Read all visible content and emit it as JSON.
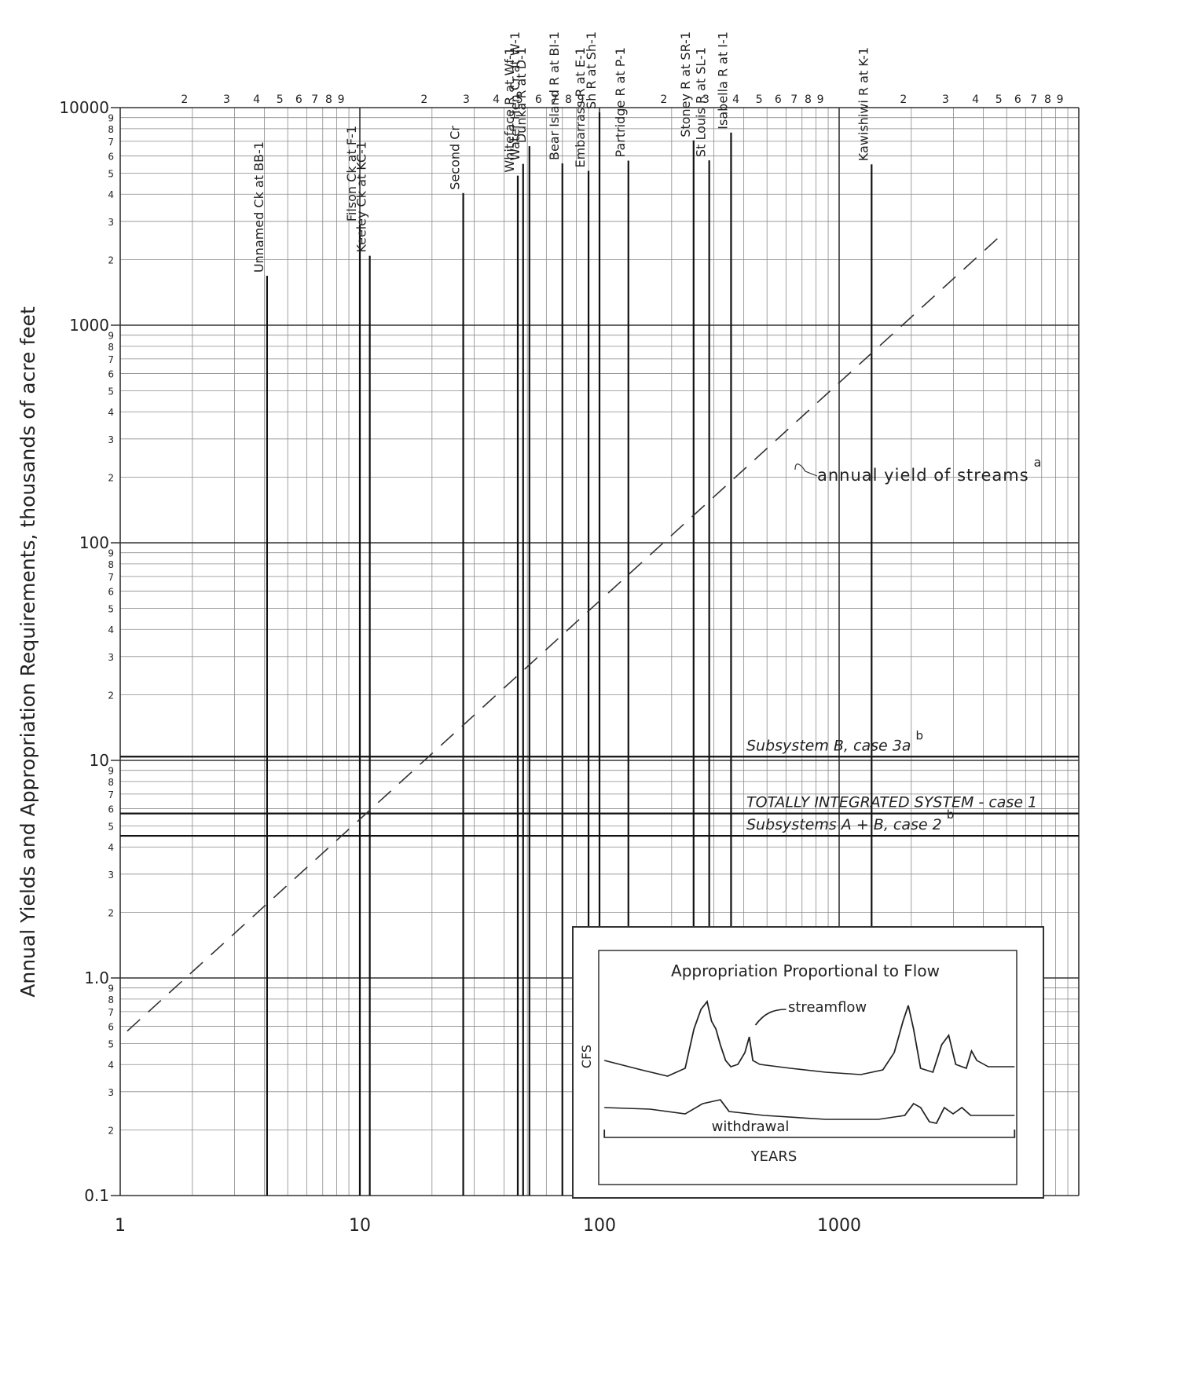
{
  "chart_data": {
    "type": "line",
    "x_scale": "log",
    "y_scale": "log",
    "y_label": "Annual Yields and Appropriation Requirements, thousands of acre feet",
    "xlim": [
      1,
      10000
    ],
    "ylim": [
      0.1,
      10000
    ],
    "xticks": [
      1,
      10,
      100,
      1000
    ],
    "yticks": [
      0.1,
      {
        "value": 1,
        "label": "1.0"
      },
      10,
      100,
      1000,
      10000
    ],
    "minor_tick_labels": [
      2,
      3,
      4,
      5,
      6,
      7,
      8,
      9
    ],
    "grid": true,
    "streams": [
      {
        "name": "Unnamed Ck at BB-1",
        "x": 4.1
      },
      {
        "name": "Filson Ck at F-1",
        "x": 10
      },
      {
        "name": "Keeley Ck at KC-1",
        "x": 11
      },
      {
        "name": "Second Cr",
        "x": 27
      },
      {
        "name": "Whiteface R at Wf-1",
        "x": 45.6
      },
      {
        "name": "Water Hen Cr at W-1",
        "x": 48
      },
      {
        "name": "Dunka R at D-1",
        "x": 51
      },
      {
        "name": "Bear Island R at BI-1",
        "x": 70
      },
      {
        "name": "Embarrass R at E-1",
        "x": 90
      },
      {
        "name": "Sh R at Sh-1",
        "x": 100
      },
      {
        "name": "Partridge R at P-1",
        "x": 132
      },
      {
        "name": "Stoney R at SR-1",
        "x": 247
      },
      {
        "name": "St Louis R at SL-1",
        "x": 287
      },
      {
        "name": "Isabella R at I-1",
        "x": 354
      },
      {
        "name": "Kawishiwi R at K-1",
        "x": 1366
      }
    ],
    "requirements": [
      {
        "name": "Subsystem B, case 3a",
        "footnote": "b",
        "y": 10.4
      },
      {
        "name": "TOTALLY INTEGRATED SYSTEM - case 1",
        "y": 5.7
      },
      {
        "name": "Subsystems A + B, case 2",
        "footnote": "b",
        "y": 4.5
      }
    ],
    "series": [
      {
        "name": "annual yield of streams",
        "footnote": "a",
        "color": "#333333",
        "x": [
          1.07,
          4720
        ],
        "values": [
          0.57,
          2580
        ]
      }
    ],
    "inset": {
      "title": "Appropriation Proportional to Flow",
      "y_label": "CFS",
      "x_label": "YEARS",
      "curve_labels": [
        "streamflow",
        "withdrawal"
      ]
    }
  }
}
